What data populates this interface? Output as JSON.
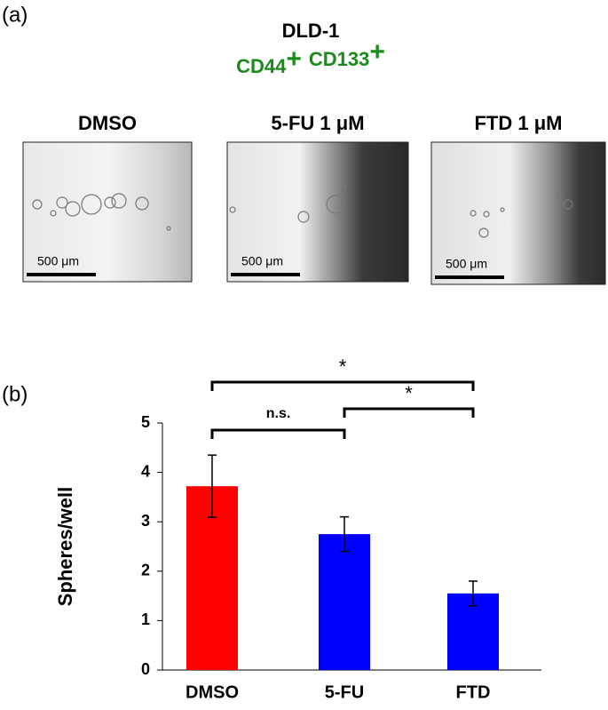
{
  "panel_a": {
    "label": "(a)",
    "title": "DLD-1",
    "markers": [
      {
        "name": "CD44",
        "sign": "+"
      },
      {
        "name": "CD133",
        "sign": "+"
      }
    ],
    "images": [
      {
        "label": "DMSO",
        "scale_bar": "500 μm"
      },
      {
        "label": "5-FU 1 μM",
        "scale_bar": "500 μm"
      },
      {
        "label": "FTD 1 μM",
        "scale_bar": "500 μm"
      }
    ]
  },
  "chart_data": {
    "type": "bar",
    "panel_label": "(b)",
    "ylabel": "Spheres/well",
    "categories": [
      "DMSO",
      "5-FU",
      "FTD"
    ],
    "values": [
      3.72,
      2.75,
      1.55
    ],
    "errors": [
      0.63,
      0.35,
      0.25
    ],
    "colors": [
      "#ff0000",
      "#0000ff",
      "#0000ff"
    ],
    "ylim": [
      0,
      5
    ],
    "yticks": [
      0,
      1,
      2,
      3,
      4,
      5
    ],
    "grid": false,
    "significance": [
      {
        "pair": [
          "DMSO",
          "5-FU"
        ],
        "label": "n.s."
      },
      {
        "pair": [
          "5-FU",
          "FTD"
        ],
        "label": "*"
      },
      {
        "pair": [
          "DMSO",
          "FTD"
        ],
        "label": "*"
      }
    ]
  }
}
